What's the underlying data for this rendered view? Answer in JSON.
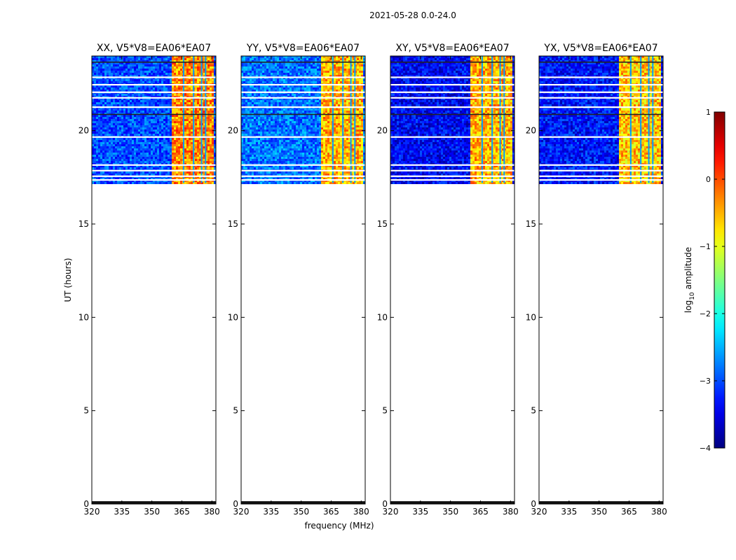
{
  "chart_data": {
    "type": "heatmap",
    "title": "2021-05-28 0.0-24.0",
    "xlabel": "frequency (MHz)",
    "ylabel": "UT (hours)",
    "xlim": [
      320,
      382
    ],
    "ylim": [
      0,
      24
    ],
    "x_ticks": [
      320,
      335,
      350,
      365,
      380
    ],
    "y_ticks": [
      0,
      5,
      10,
      15,
      20
    ],
    "data_time_range_hours": [
      17.2,
      24.0
    ],
    "baseline_time_band_hours": [
      0.0,
      0.15
    ],
    "bright_band_mhz": [
      360,
      381
    ],
    "vertical_gap_lines_mhz": [
      365.5,
      370.5,
      374.5,
      376.5
    ],
    "panels": [
      {
        "title": "XX, V5*V8=EA06*EA07",
        "background_level": -3.0,
        "band_level": -0.3,
        "blank_rows_hours": [
          22.9,
          22.5,
          22.1,
          21.8,
          21.3,
          19.7,
          18.2,
          17.9,
          17.6,
          17.4
        ],
        "dark_rows_hours": [
          23.7,
          20.9
        ]
      },
      {
        "title": "YY, V5*V8=EA06*EA07",
        "background_level": -2.8,
        "band_level": -0.5,
        "blank_rows_hours": [
          22.9,
          22.5,
          22.1,
          21.8,
          21.3,
          19.7,
          18.2,
          17.9,
          17.6,
          17.4
        ],
        "dark_rows_hours": [
          23.7,
          20.9
        ]
      },
      {
        "title": "XY, V5*V8=EA06*EA07",
        "background_level": -3.4,
        "band_level": -0.5,
        "blank_rows_hours": [
          22.9,
          22.5,
          22.1,
          21.8,
          21.3,
          19.7,
          18.2,
          17.9,
          17.6,
          17.4
        ],
        "dark_rows_hours": [
          23.7,
          20.9
        ]
      },
      {
        "title": "YX, V5*V8=EA06*EA07",
        "background_level": -3.3,
        "band_level": -0.6,
        "blank_rows_hours": [
          22.9,
          22.5,
          22.1,
          21.8,
          21.3,
          19.7,
          18.2,
          17.9,
          17.6,
          17.4
        ],
        "dark_rows_hours": [
          23.7,
          20.9
        ]
      }
    ],
    "colorbar": {
      "label": "log10 amplitude",
      "label_base": "log",
      "label_sub": "10",
      "label_rest": " amplitude",
      "range": [
        -4,
        1
      ],
      "ticks": [
        1,
        0,
        -1,
        -2,
        -3,
        -4
      ],
      "tick_labels": [
        "1",
        "0",
        "−1",
        "−2",
        "−3",
        "−4"
      ],
      "colormap": "jet"
    }
  }
}
